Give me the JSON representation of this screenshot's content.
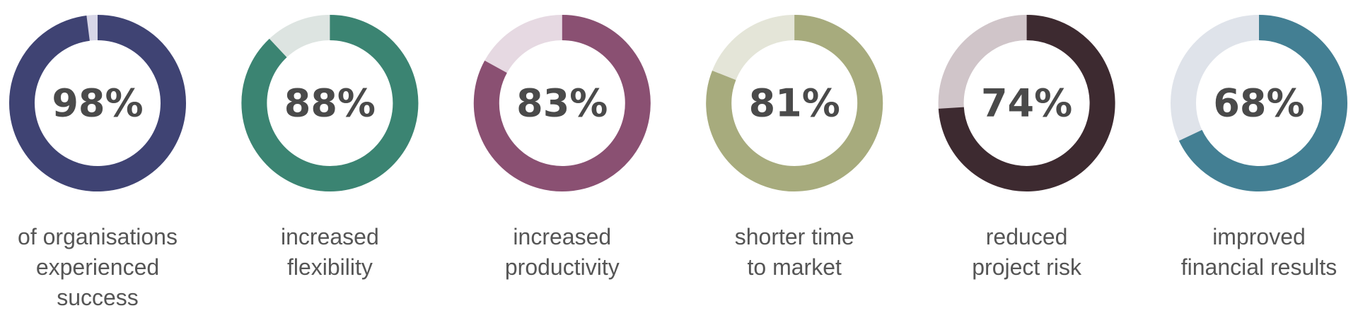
{
  "chart_data": [
    {
      "type": "donut",
      "values": [
        98
      ],
      "value_labels": [
        "98%"
      ],
      "color": "#3f4373",
      "track_color": "#d8d7e8",
      "caption": [
        "of organisations",
        "experienced",
        "success"
      ]
    },
    {
      "type": "donut",
      "values": [
        88
      ],
      "value_labels": [
        "88%"
      ],
      "color": "#3b8472",
      "track_color": "#dde4e1",
      "caption": [
        "increased",
        "flexibility"
      ]
    },
    {
      "type": "donut",
      "values": [
        83
      ],
      "value_labels": [
        "83%"
      ],
      "color": "#8a5072",
      "track_color": "#e6d9e2",
      "caption": [
        "increased",
        "productivity"
      ]
    },
    {
      "type": "donut",
      "values": [
        81
      ],
      "value_labels": [
        "81%"
      ],
      "color": "#a7ab7d",
      "track_color": "#e4e5d8",
      "caption": [
        "shorter time",
        "to market"
      ]
    },
    {
      "type": "donut",
      "values": [
        74
      ],
      "value_labels": [
        "74%"
      ],
      "color": "#3d2a30",
      "track_color": "#d0c5c9",
      "caption": [
        "reduced",
        "project risk"
      ]
    },
    {
      "type": "donut",
      "values": [
        68
      ],
      "value_labels": [
        "68%"
      ],
      "color": "#437f93",
      "track_color": "#dfe3ea",
      "caption": [
        "improved",
        "financial results"
      ]
    }
  ]
}
